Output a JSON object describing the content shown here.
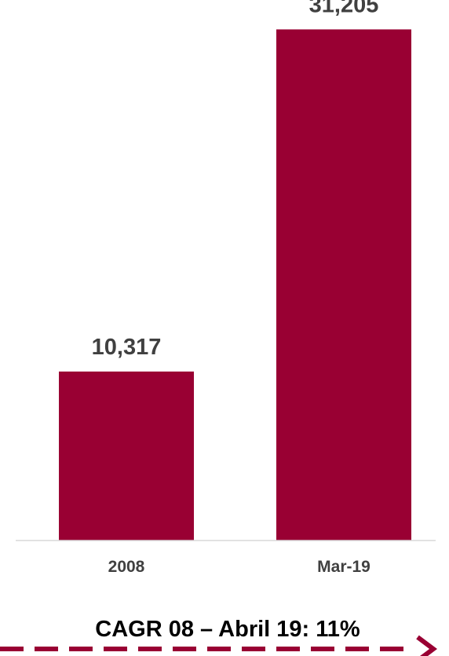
{
  "chart_data": {
    "type": "bar",
    "categories": [
      "2008",
      "Mar-19"
    ],
    "values": [
      10317,
      31205
    ],
    "data_labels": [
      "10,317",
      "31,205"
    ],
    "ylim": [
      0,
      33000
    ],
    "grid": false,
    "legend": "none",
    "bar_color": "#990033",
    "annotation": "CAGR 08 – Abril 19: 11%",
    "arrow_color": "#990033"
  }
}
